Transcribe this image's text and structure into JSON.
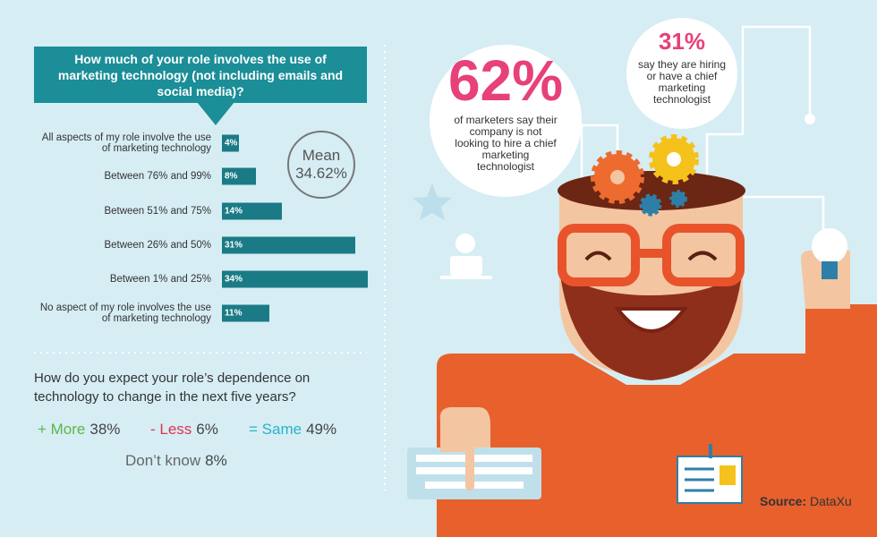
{
  "chart_data": {
    "type": "bar",
    "title": "How much of your role involves the use of marketing technology (not including emails and social media)?",
    "categories": [
      "All aspects of my role involve the use of marketing technology",
      "Between 76% and 99%",
      "Between 51% and 75%",
      "Between 26% and 50%",
      "Between 1% and 25%",
      "No aspect of my role involves the use of marketing technology"
    ],
    "values": [
      4,
      8,
      14,
      31,
      34,
      11
    ],
    "value_labels": [
      "4%",
      "8%",
      "14%",
      "31%",
      "34%",
      "11%"
    ],
    "color": "#1a7b86",
    "mean_label": "Mean",
    "mean_text": "34.62%"
  },
  "callouts": [
    {
      "figure": "62%",
      "text": "of marketers say their company is not looking to hire a chief marketing technologist"
    },
    {
      "figure": "31%",
      "text": "say they are hiring or have a chief marketing technologist"
    }
  ],
  "question2": {
    "title": "How do you expect your role’s dependence on technology to change in the next five years?",
    "answers": [
      {
        "label": "+ More",
        "value": "38%",
        "color": "#5cb646"
      },
      {
        "label": "- Less",
        "value": "6%",
        "color": "#e0344e"
      },
      {
        "label": "= Same",
        "value": "49%",
        "color": "#2bb3c8"
      },
      {
        "label": "Don’t know",
        "value": "8%",
        "color": "#666666"
      }
    ]
  },
  "source": {
    "label": "Source:",
    "name": "DataXu"
  }
}
